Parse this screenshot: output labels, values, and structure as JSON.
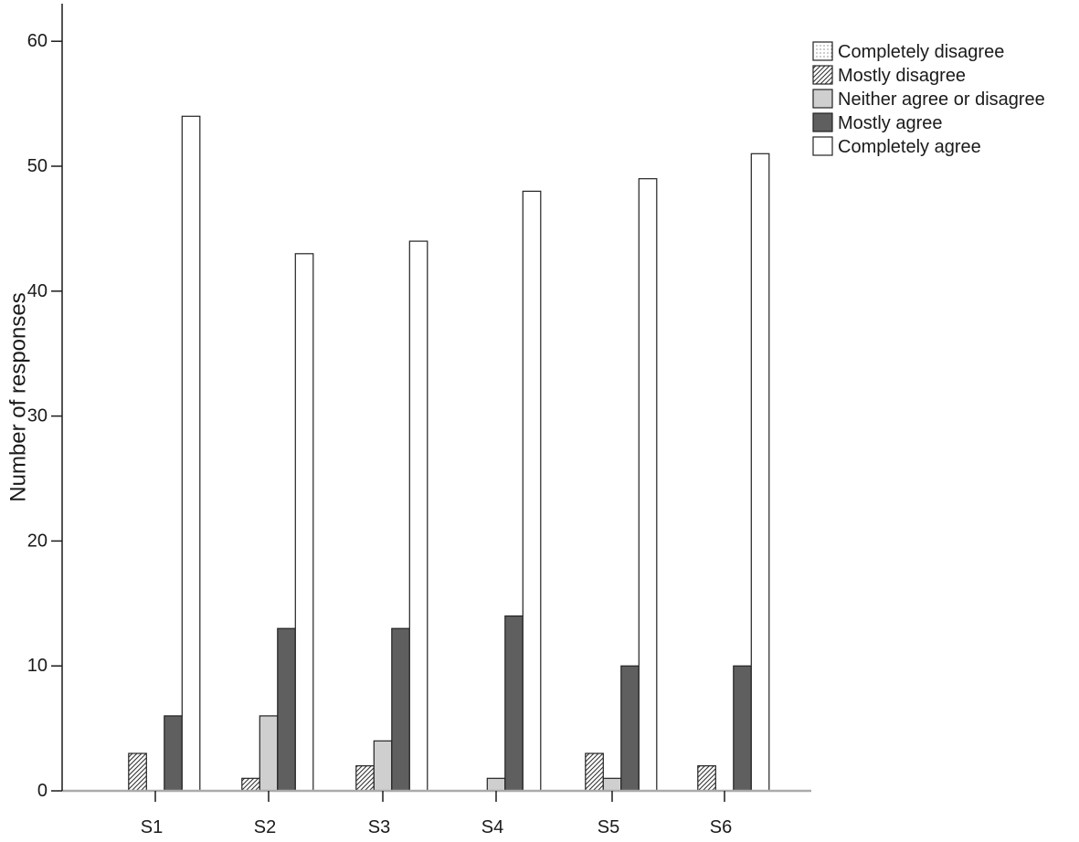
{
  "chart_data": {
    "type": "bar",
    "title": "",
    "xlabel": "",
    "ylabel": "Number of responses",
    "ylim": [
      0,
      63
    ],
    "yticks": [
      0,
      10,
      20,
      30,
      40,
      50,
      60
    ],
    "grid": false,
    "legend_position": "top-right",
    "categories": [
      "S1",
      "S2",
      "S3",
      "S4",
      "S5",
      "S6"
    ],
    "series": [
      {
        "name": "Completely disagree",
        "values": [
          0,
          0,
          0,
          0,
          0,
          0
        ],
        "fill": "dotted-white"
      },
      {
        "name": "Mostly disagree",
        "values": [
          3,
          1,
          2,
          0,
          3,
          2
        ],
        "fill": "hatched"
      },
      {
        "name": "Neither agree or disagree",
        "values": [
          0,
          6,
          4,
          1,
          1,
          0
        ],
        "fill": "#cfcfcf"
      },
      {
        "name": "Mostly agree",
        "values": [
          6,
          13,
          13,
          14,
          10,
          10
        ],
        "fill": "#5f5f5f"
      },
      {
        "name": "Completely agree",
        "values": [
          54,
          43,
          44,
          48,
          49,
          51
        ],
        "fill": "#ffffff"
      }
    ]
  },
  "colors": {
    "axis": "#1a1a1a",
    "baseline": "#aaaaaa",
    "neither": "#cfcfcf",
    "mostly_agree": "#5f5f5f",
    "completely_agree": "#ffffff"
  }
}
